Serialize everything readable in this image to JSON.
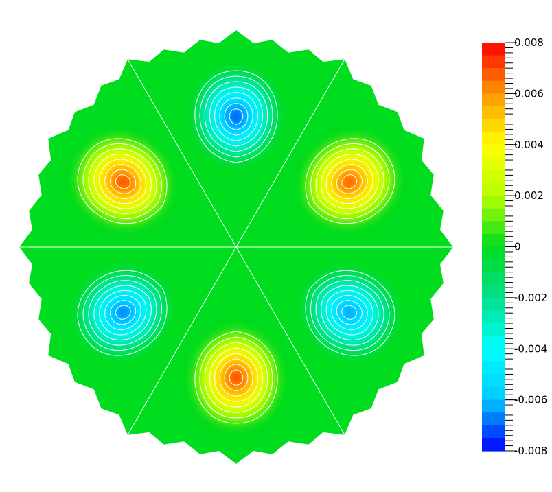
{
  "colorbar": {
    "min": -0.008,
    "max": 0.008,
    "bands": 32,
    "labels": [
      "0.008",
      "0.006",
      "0.004",
      "0.002",
      "0",
      "-0.002",
      "-0.004",
      "-0.006",
      "-0.008"
    ],
    "colormap": [
      "#0000ff",
      "#00c8ff",
      "#00ffff",
      "#00e18c",
      "#00dc1e",
      "#b4ff00",
      "#ffff00",
      "#ff9600",
      "#ff0000"
    ]
  },
  "field": {
    "lobes": [
      {
        "sign": -1,
        "amplitude": 0.008
      },
      {
        "sign": 1,
        "amplitude": 0.0075
      },
      {
        "sign": -1,
        "amplitude": 0.007
      },
      {
        "sign": 1,
        "amplitude": 0.0079
      },
      {
        "sign": -1,
        "amplitude": 0.0075
      },
      {
        "sign": 1,
        "amplitude": 0.0078
      }
    ],
    "contour_levels": [
      -0.0075,
      -0.0065,
      -0.0055,
      -0.0045,
      -0.0035,
      -0.0025,
      -0.0015,
      -0.0005,
      0.0005,
      0.0015,
      0.0025,
      0.0035,
      0.0045,
      0.0055,
      0.0065,
      0.0075
    ],
    "contour_color": "#ffffff"
  }
}
